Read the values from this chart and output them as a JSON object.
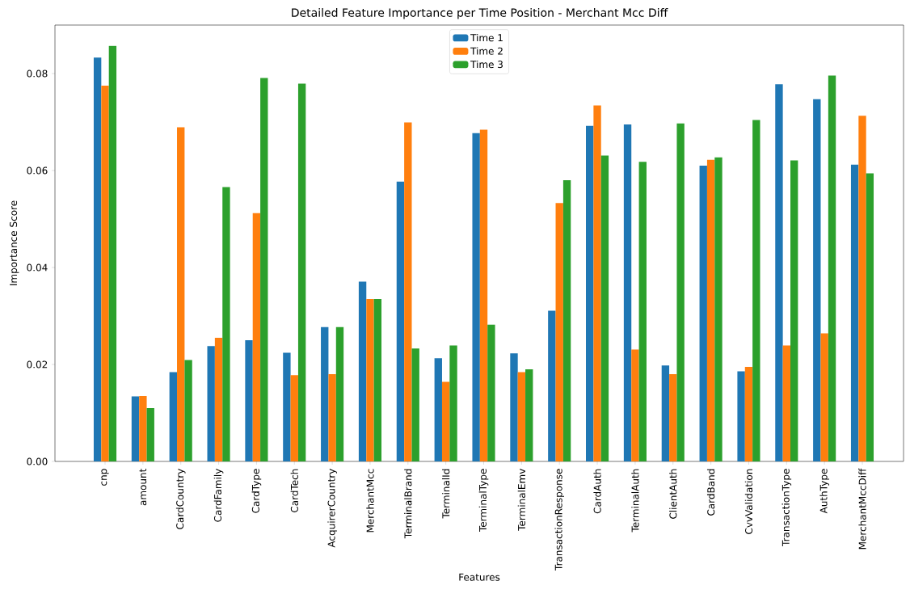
{
  "chart_data": {
    "type": "bar",
    "title": "Detailed Feature Importance per Time Position - Merchant Mcc Diff",
    "xlabel": "Features",
    "ylabel": "Importance Score",
    "categories": [
      "cnp",
      "amount",
      "CardCountry",
      "CardFamily",
      "CardType",
      "CardTech",
      "AcquirerCountry",
      "MerchantMcc",
      "TerminalBrand",
      "TerminalId",
      "TerminalType",
      "TerminalEmv",
      "TransactionResponse",
      "CardAuth",
      "TerminalAuth",
      "ClientAuth",
      "CardBand",
      "CvvValidation",
      "TransactionType",
      "AuthType",
      "MerchantMccDiff"
    ],
    "series": [
      {
        "name": "Time 1",
        "color": "#1f77b4",
        "values": [
          0.0833,
          0.0134,
          0.0184,
          0.0238,
          0.025,
          0.0224,
          0.0277,
          0.0371,
          0.0577,
          0.0213,
          0.0677,
          0.0223,
          0.0311,
          0.0692,
          0.0695,
          0.0198,
          0.061,
          0.0186,
          0.0778,
          0.0747,
          0.0612
        ]
      },
      {
        "name": "Time 2",
        "color": "#ff7f0e",
        "values": [
          0.0775,
          0.0135,
          0.0689,
          0.0255,
          0.0512,
          0.0178,
          0.018,
          0.0335,
          0.0699,
          0.0164,
          0.0684,
          0.0184,
          0.0533,
          0.0734,
          0.0231,
          0.018,
          0.0622,
          0.0195,
          0.0239,
          0.0264,
          0.0713
        ]
      },
      {
        "name": "Time 3",
        "color": "#2ca02c",
        "values": [
          0.0857,
          0.011,
          0.0209,
          0.0566,
          0.0791,
          0.0779,
          0.0277,
          0.0335,
          0.0233,
          0.0239,
          0.0282,
          0.019,
          0.058,
          0.0631,
          0.0618,
          0.0697,
          0.0627,
          0.0704,
          0.0621,
          0.0796,
          0.0594
        ]
      }
    ],
    "ylim": [
      0,
      0.09
    ],
    "yticks": [
      {
        "value": 0,
        "label": "0.00"
      },
      {
        "value": 0.02,
        "label": "0.02"
      },
      {
        "value": 0.04,
        "label": "0.04"
      },
      {
        "value": 0.06,
        "label": "0.06"
      },
      {
        "value": 0.08,
        "label": "0.08"
      }
    ],
    "legend": "top",
    "grid": false
  }
}
